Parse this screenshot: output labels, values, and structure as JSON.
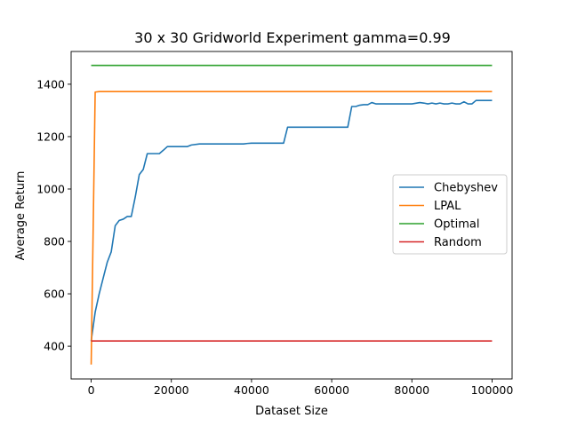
{
  "chart_data": {
    "type": "line",
    "title": "30 x 30 Gridworld Experiment gamma=0.99",
    "xlabel": "Dataset Size",
    "ylabel": "Average Return",
    "xlim": [
      -5000,
      105000
    ],
    "ylim": [
      275,
      1525
    ],
    "xticks": [
      0,
      20000,
      40000,
      60000,
      80000,
      100000
    ],
    "xtick_labels": [
      "0",
      "20000",
      "40000",
      "60000",
      "80000",
      "100000"
    ],
    "yticks": [
      400,
      600,
      800,
      1000,
      1200,
      1400
    ],
    "ytick_labels": [
      "400",
      "600",
      "800",
      "1000",
      "1200",
      "1400"
    ],
    "grid": false,
    "legend_position": "center-right",
    "series": [
      {
        "name": "Chebyshev",
        "color": "#1f77b4",
        "x": [
          0,
          1000,
          2000,
          3000,
          4000,
          5000,
          6000,
          7000,
          8000,
          9000,
          10000,
          11000,
          12000,
          13000,
          14000,
          15000,
          16000,
          17000,
          18000,
          19000,
          20000,
          24000,
          25000,
          27000,
          30000,
          35000,
          38000,
          39000,
          40000,
          45000,
          48000,
          49000,
          50000,
          55000,
          60000,
          64000,
          65000,
          66000,
          67000,
          68000,
          69000,
          70000,
          71000,
          72000,
          75000,
          80000,
          82000,
          83000,
          84000,
          85000,
          86000,
          87000,
          88000,
          89000,
          90000,
          91000,
          92000,
          93000,
          94000,
          95000,
          96000,
          97000,
          98000,
          99000,
          100000
        ],
        "y": [
          420,
          530,
          600,
          660,
          720,
          760,
          860,
          880,
          885,
          895,
          895,
          970,
          1055,
          1075,
          1135,
          1135,
          1135,
          1135,
          1148,
          1162,
          1162,
          1162,
          1168,
          1172,
          1172,
          1172,
          1172,
          1174,
          1175,
          1175,
          1175,
          1236,
          1236,
          1236,
          1236,
          1236,
          1315,
          1315,
          1320,
          1322,
          1322,
          1330,
          1325,
          1325,
          1325,
          1325,
          1330,
          1328,
          1325,
          1328,
          1325,
          1328,
          1325,
          1325,
          1328,
          1325,
          1325,
          1333,
          1325,
          1325,
          1338,
          1338,
          1338,
          1338,
          1338
        ]
      },
      {
        "name": "LPAL",
        "color": "#ff7f0e",
        "x": [
          0,
          1000,
          2000,
          3000,
          100000
        ],
        "y": [
          330,
          1370,
          1372,
          1372,
          1372
        ]
      },
      {
        "name": "Optimal",
        "color": "#2ca02c",
        "x": [
          0,
          100000
        ],
        "y": [
          1472,
          1472
        ]
      },
      {
        "name": "Random",
        "color": "#d62728",
        "x": [
          0,
          100000
        ],
        "y": [
          420,
          420
        ]
      }
    ]
  }
}
